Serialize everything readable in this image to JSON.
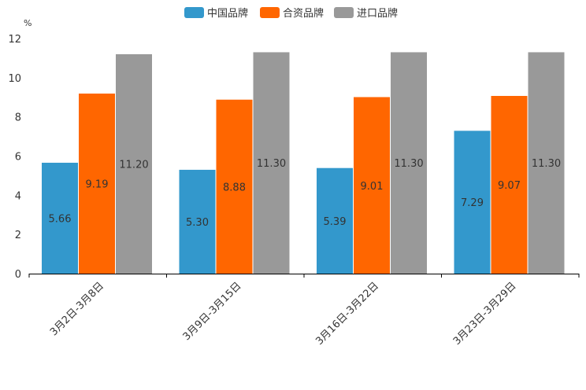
{
  "chart_data": {
    "type": "bar",
    "title": "",
    "xlabel": "",
    "ylabel": "%",
    "ylim": [
      0,
      12
    ],
    "yticks": [
      0,
      2,
      4,
      6,
      8,
      10,
      12
    ],
    "grid": false,
    "legend_position": "top-center",
    "categories": [
      "3月2日-3月8日",
      "3月9日-3月15日",
      "3月16日-3月22日",
      "3月23日-3月29日"
    ],
    "series": [
      {
        "name": "中国品牌",
        "color": "#3398cc",
        "values": [
          5.66,
          5.3,
          5.39,
          7.29
        ],
        "labels": [
          "5.66",
          "5.30",
          "5.39",
          "7.29"
        ]
      },
      {
        "name": "合资品牌",
        "color": "#ff6600",
        "values": [
          9.19,
          8.88,
          9.01,
          9.07
        ],
        "labels": [
          "9.19",
          "8.88",
          "9.01",
          "9.07"
        ]
      },
      {
        "name": "进口品牌",
        "color": "#999999",
        "values": [
          11.2,
          11.3,
          11.3,
          11.3
        ],
        "labels": [
          "11.20",
          "11.30",
          "11.30",
          "11.30"
        ]
      }
    ]
  }
}
